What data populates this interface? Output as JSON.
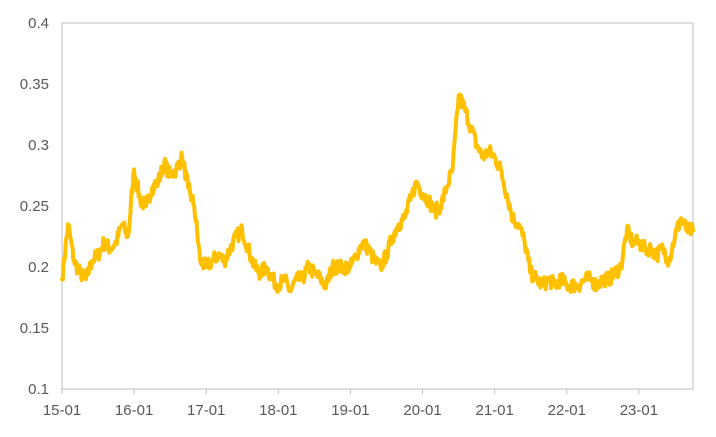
{
  "chart_data": {
    "type": "line",
    "title": "",
    "xlabel": "",
    "ylabel": "",
    "ylim": [
      0.1,
      0.4
    ],
    "yticks": [
      0.1,
      0.15,
      0.2,
      0.25,
      0.3,
      0.35,
      0.4
    ],
    "ytick_labels": [
      "0.1",
      "0.15",
      "0.2",
      "0.25",
      "0.3",
      "0.35",
      "0.4"
    ],
    "xlim": [
      "2015-01",
      "2023-10"
    ],
    "xticks": [
      "2015-01",
      "2016-01",
      "2017-01",
      "2018-01",
      "2019-01",
      "2020-01",
      "2021-01",
      "2022-01",
      "2023-01"
    ],
    "xtick_labels": [
      "15-01",
      "16-01",
      "17-01",
      "18-01",
      "19-01",
      "20-01",
      "21-01",
      "22-01",
      "23-01"
    ],
    "grid": false,
    "legend": "none",
    "line_color": "#FFC000",
    "series": [
      {
        "x": [
          "2015-01",
          "2015-02",
          "2015-03",
          "2015-04",
          "2015-05",
          "2015-06",
          "2015-07",
          "2015-08",
          "2015-09",
          "2015-10",
          "2015-11",
          "2015-12",
          "2016-01",
          "2016-02",
          "2016-03",
          "2016-04",
          "2016-05",
          "2016-06",
          "2016-07",
          "2016-08",
          "2016-09",
          "2016-10",
          "2016-11",
          "2016-12",
          "2017-01",
          "2017-02",
          "2017-03",
          "2017-04",
          "2017-05",
          "2017-06",
          "2017-07",
          "2017-08",
          "2017-09",
          "2017-10",
          "2017-11",
          "2017-12",
          "2018-01",
          "2018-02",
          "2018-03",
          "2018-04",
          "2018-05",
          "2018-06",
          "2018-07",
          "2018-08",
          "2018-09",
          "2018-10",
          "2018-11",
          "2018-12",
          "2019-01",
          "2019-02",
          "2019-03",
          "2019-04",
          "2019-05",
          "2019-06",
          "2019-07",
          "2019-08",
          "2019-09",
          "2019-10",
          "2019-11",
          "2019-12",
          "2020-01",
          "2020-02",
          "2020-03",
          "2020-04",
          "2020-05",
          "2020-06",
          "2020-07",
          "2020-08",
          "2020-09",
          "2020-10",
          "2020-11",
          "2020-12",
          "2021-01",
          "2021-02",
          "2021-03",
          "2021-04",
          "2021-05",
          "2021-06",
          "2021-07",
          "2021-08",
          "2021-09",
          "2021-10",
          "2021-11",
          "2021-12",
          "2022-01",
          "2022-02",
          "2022-03",
          "2022-04",
          "2022-05",
          "2022-06",
          "2022-07",
          "2022-08",
          "2022-09",
          "2022-10",
          "2022-11",
          "2022-12",
          "2023-01",
          "2023-02",
          "2023-03",
          "2023-04",
          "2023-05",
          "2023-06",
          "2023-07",
          "2023-08",
          "2023-09",
          "2023-10"
        ],
        "values": [
          0.19,
          0.235,
          0.205,
          0.195,
          0.19,
          0.205,
          0.21,
          0.22,
          0.215,
          0.22,
          0.235,
          0.225,
          0.28,
          0.255,
          0.25,
          0.265,
          0.27,
          0.285,
          0.275,
          0.28,
          0.29,
          0.265,
          0.25,
          0.205,
          0.2,
          0.205,
          0.21,
          0.205,
          0.215,
          0.225,
          0.23,
          0.215,
          0.2,
          0.195,
          0.2,
          0.19,
          0.185,
          0.19,
          0.18,
          0.19,
          0.19,
          0.2,
          0.195,
          0.19,
          0.185,
          0.2,
          0.2,
          0.2,
          0.2,
          0.21,
          0.22,
          0.215,
          0.205,
          0.2,
          0.21,
          0.225,
          0.235,
          0.24,
          0.255,
          0.27,
          0.26,
          0.255,
          0.245,
          0.25,
          0.265,
          0.28,
          0.34,
          0.33,
          0.315,
          0.3,
          0.29,
          0.295,
          0.29,
          0.28,
          0.26,
          0.24,
          0.235,
          0.22,
          0.195,
          0.19,
          0.185,
          0.19,
          0.185,
          0.19,
          0.185,
          0.185,
          0.185,
          0.19,
          0.19,
          0.185,
          0.19,
          0.19,
          0.195,
          0.2,
          0.23,
          0.22,
          0.22,
          0.215,
          0.215,
          0.21,
          0.215,
          0.205,
          0.225,
          0.24,
          0.23,
          0.23
        ]
      }
    ]
  }
}
